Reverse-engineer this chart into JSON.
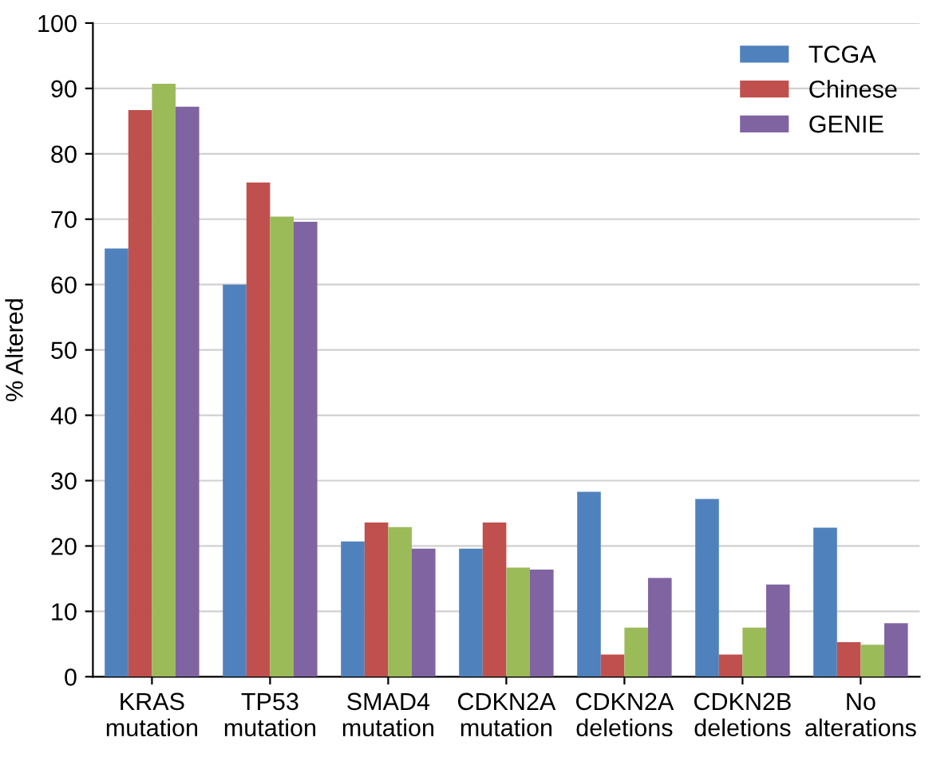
{
  "chart_data": {
    "type": "bar",
    "ylabel": "% Altered",
    "categories": [
      "KRAS\nmutation",
      "TP53\nmutation",
      "SMAD4\nmutation",
      "CDKN2A\nmutation",
      "CDKN2A\ndeletions",
      "CDKN2B\ndeletions",
      "No\nalterations"
    ],
    "series": [
      {
        "name": "TCGA",
        "color": "#4f81bd",
        "values": [
          65.5,
          60,
          20.7,
          19.6,
          28.3,
          27.2,
          22.8
        ]
      },
      {
        "name": "Chinese",
        "color": "#c0504d",
        "values": [
          86.7,
          75.6,
          23.6,
          23.6,
          3.4,
          3.4,
          5.3
        ]
      },
      {
        "color": "#9bbb59",
        "values": [
          90.7,
          70.4,
          22.9,
          16.7,
          7.5,
          7.5,
          4.9
        ]
      },
      {
        "name": "GENIE",
        "color": "#8064a2",
        "values": [
          87.2,
          69.6,
          19.6,
          16.4,
          15.1,
          14.1,
          8.2
        ]
      }
    ],
    "ylim": [
      0,
      100
    ],
    "yticks": [
      0,
      10,
      20,
      30,
      40,
      50,
      60,
      70,
      80,
      90,
      100
    ],
    "grid": "y",
    "legend": "top right"
  }
}
